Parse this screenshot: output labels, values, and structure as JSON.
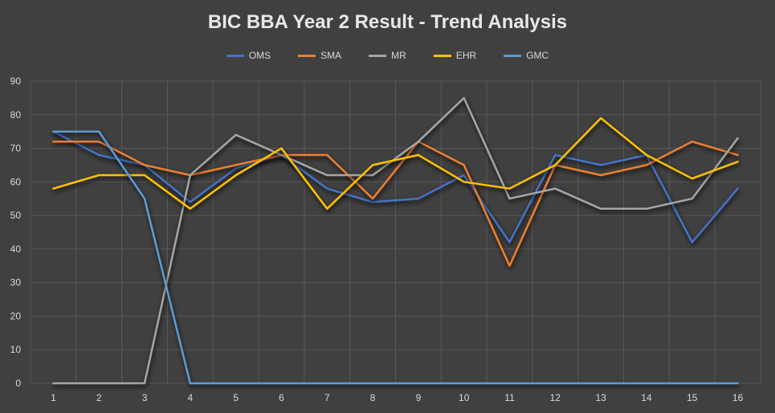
{
  "chart_data": {
    "type": "line",
    "title": "BIC BBA Year 2 Result - Trend Analysis",
    "xlabel": "",
    "ylabel": "",
    "categories": [
      "1",
      "2",
      "3",
      "4",
      "5",
      "6",
      "7",
      "8",
      "9",
      "10",
      "11",
      "12",
      "13",
      "14",
      "15",
      "16"
    ],
    "ylim": [
      0,
      90
    ],
    "yticks": [
      0,
      10,
      20,
      30,
      40,
      50,
      60,
      70,
      80,
      90
    ],
    "grid": true,
    "legend_position": "top-center",
    "series": [
      {
        "name": "OMS",
        "color": "#4472c4",
        "values": [
          75,
          68,
          65,
          54,
          64,
          68,
          58,
          54,
          55,
          62,
          42,
          68,
          65,
          68,
          42,
          58
        ]
      },
      {
        "name": "SMA",
        "color": "#ed7d31",
        "values": [
          72,
          72,
          65,
          62,
          65,
          68,
          68,
          55,
          72,
          65,
          35,
          65,
          62,
          65,
          72,
          68
        ]
      },
      {
        "name": "MR",
        "color": "#a5a5a5",
        "values": [
          0,
          0,
          0,
          62,
          74,
          68,
          62,
          62,
          72,
          85,
          55,
          58,
          52,
          52,
          55,
          73
        ]
      },
      {
        "name": "EHR",
        "color": "#ffc000",
        "values": [
          58,
          62,
          62,
          52,
          62,
          70,
          52,
          65,
          68,
          60,
          58,
          65,
          79,
          68,
          61,
          66
        ]
      },
      {
        "name": "GMC",
        "color": "#5b9bd5",
        "values": [
          75,
          75,
          55,
          0,
          0,
          0,
          0,
          0,
          0,
          0,
          0,
          0,
          0,
          0,
          0,
          0
        ]
      }
    ]
  }
}
